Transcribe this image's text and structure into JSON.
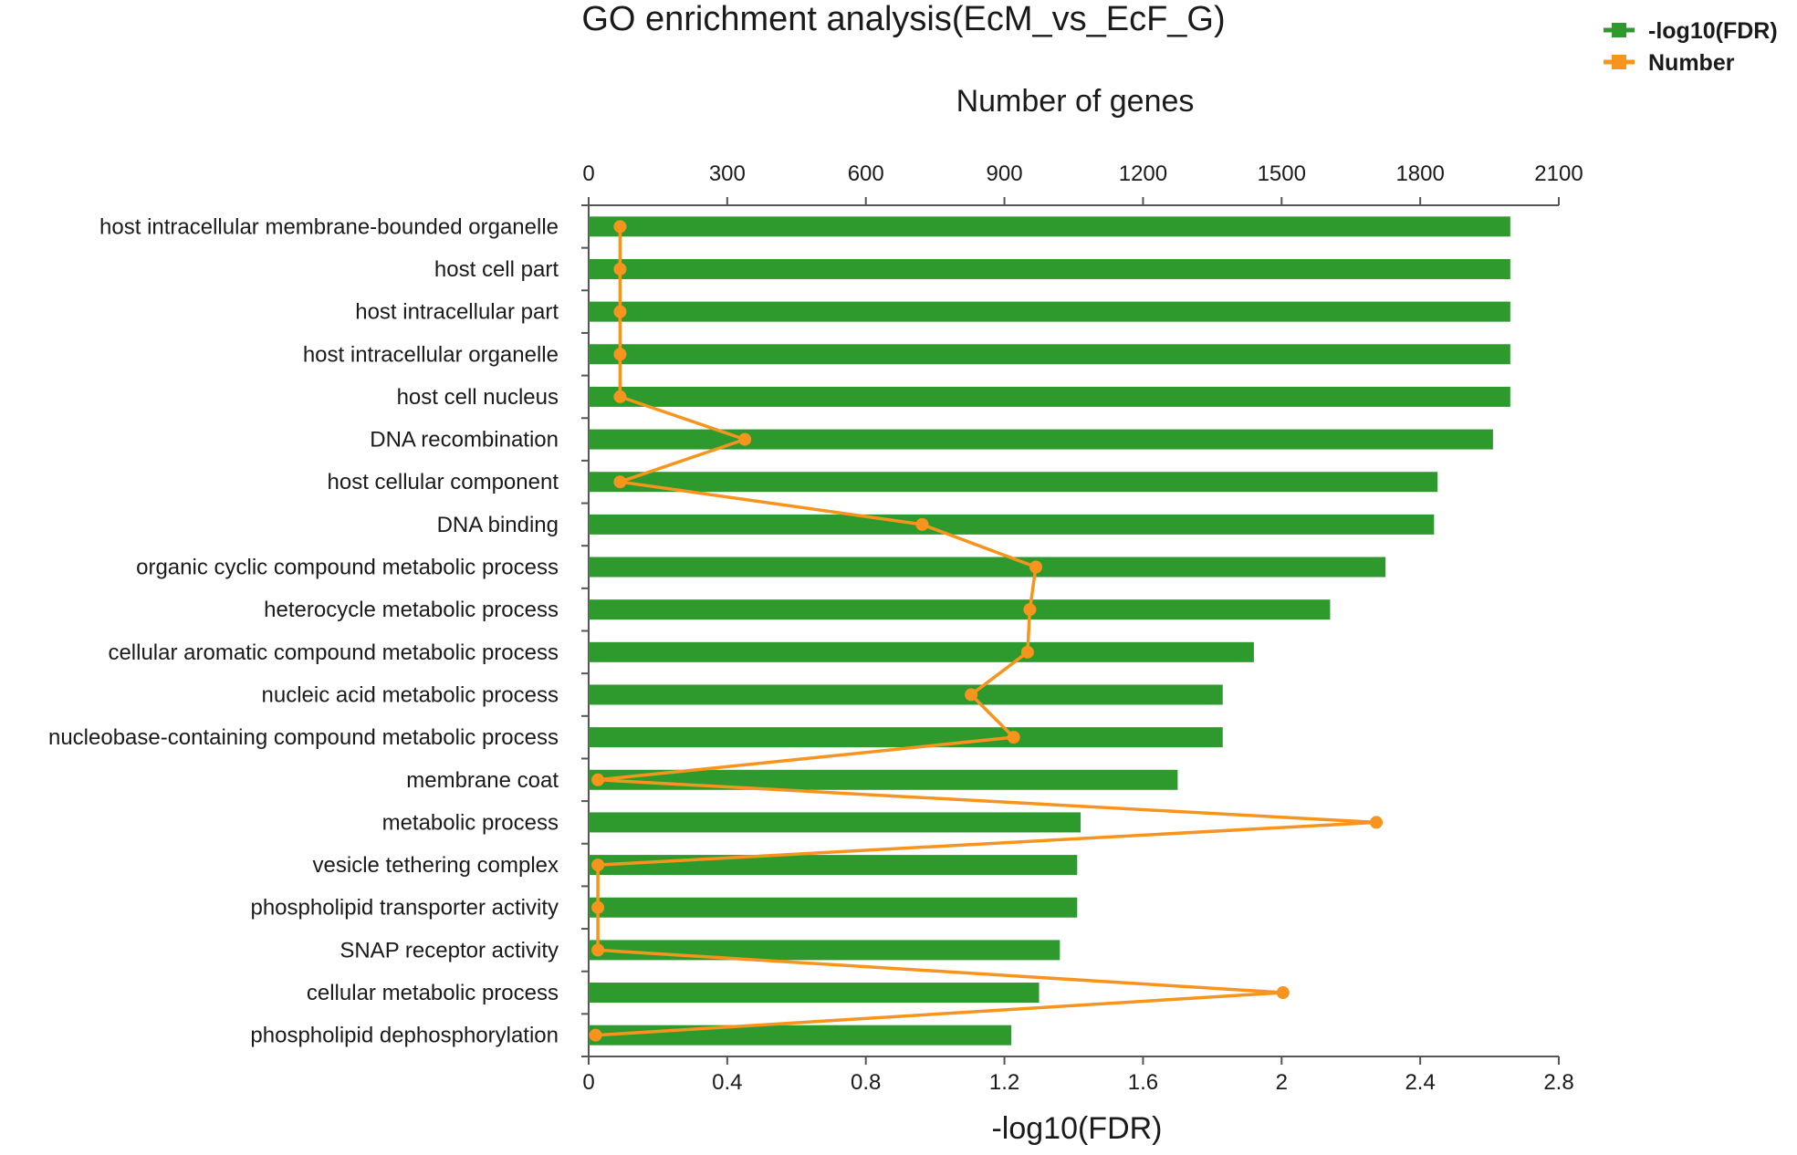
{
  "chart_data": {
    "type": "bar",
    "orientation": "horizontal",
    "title": "GO enrichment analysis(EcM_vs_EcF_G)",
    "xlabel": "-log10(FDR)",
    "x2label": "Number of genes",
    "xlim": [
      0,
      2.8
    ],
    "x2lim": [
      0,
      2100
    ],
    "xticks": [
      "0",
      "0.4",
      "0.8",
      "1.2",
      "1.6",
      "2",
      "2.4",
      "2.8"
    ],
    "x2ticks": [
      "0",
      "300",
      "600",
      "900",
      "1200",
      "1500",
      "1800",
      "2100"
    ],
    "legend": [
      {
        "name": "-log10(FDR)",
        "color": "#2e9a2e"
      },
      {
        "name": "Number",
        "color": "#f7941d"
      }
    ],
    "categories": [
      "host intracellular membrane-bounded organelle",
      "host cell part",
      "host intracellular part",
      "host intracellular organelle",
      "host cell nucleus",
      "DNA recombination",
      "host cellular component",
      "DNA binding",
      "organic cyclic compound metabolic process",
      "heterocycle metabolic process",
      "cellular aromatic compound metabolic process",
      "nucleic acid metabolic process",
      "nucleobase-containing compound metabolic process",
      "membrane coat",
      "metabolic process",
      "vesicle tethering complex",
      "phospholipid transporter activity",
      "SNAP receptor activity",
      "cellular metabolic process",
      "phospholipid dephosphorylation"
    ],
    "series": [
      {
        "name": "-log10(FDR)",
        "type": "bar",
        "axis": "bottom",
        "values": [
          2.66,
          2.66,
          2.66,
          2.66,
          2.66,
          2.61,
          2.45,
          2.44,
          2.3,
          2.14,
          1.92,
          1.83,
          1.83,
          1.7,
          1.42,
          1.41,
          1.41,
          1.36,
          1.3,
          1.22
        ]
      },
      {
        "name": "Number",
        "type": "line",
        "axis": "top",
        "values": [
          68,
          68,
          68,
          68,
          68,
          338,
          68,
          722,
          968,
          955,
          950,
          828,
          920,
          20,
          1705,
          20,
          20,
          20,
          1503,
          15
        ]
      }
    ]
  }
}
